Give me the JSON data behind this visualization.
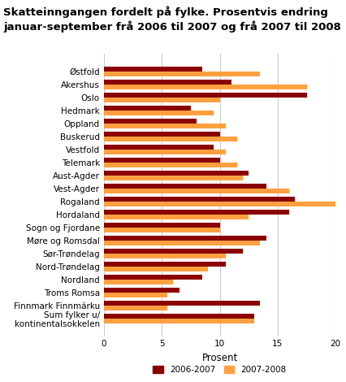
{
  "title": "Skatteinngangen fordelt på fylke. Prosentvis endring\njanuar-september frå 2006 til 2007 og frå 2007 til 2008",
  "categories": [
    "Østfold",
    "Akershus",
    "Oslo",
    "Hedmark",
    "Oppland",
    "Buskerud",
    "Vestfold",
    "Telemark",
    "Aust-Agder",
    "Vest-Agder",
    "Rogaland",
    "Hordaland",
    "Sogn og Fjordane",
    "Møre og Romsdal",
    "Sør-Trøndelag",
    "Nord-Trøndelag",
    "Nordland",
    "Troms Romsa",
    "Finnmark Finnmárku",
    "Sum fylker u/\nkontinentalsokkelen"
  ],
  "values_2006_2007": [
    8.5,
    11.0,
    17.5,
    7.5,
    8.0,
    10.0,
    9.5,
    10.0,
    12.5,
    14.0,
    16.5,
    16.0,
    10.0,
    14.0,
    12.0,
    10.5,
    8.5,
    6.5,
    13.5,
    13.0
  ],
  "values_2007_2008": [
    13.5,
    17.5,
    10.0,
    9.5,
    10.5,
    11.5,
    10.5,
    11.5,
    12.0,
    16.0,
    20.0,
    12.5,
    10.0,
    13.5,
    10.5,
    9.0,
    6.0,
    5.5,
    5.5,
    13.0
  ],
  "color_2006_2007": "#8B0000",
  "color_2007_2008": "#FFA040",
  "xlabel": "Prosent",
  "xlim": [
    0,
    20
  ],
  "xticks": [
    0,
    5,
    10,
    15,
    20
  ],
  "bar_height": 0.38,
  "legend_labels": [
    "2006-2007",
    "2007-2008"
  ],
  "background_color": "#ffffff",
  "grid_color": "#cccccc",
  "title_fontsize": 9.5,
  "axis_fontsize": 8.5,
  "tick_fontsize": 7.5
}
